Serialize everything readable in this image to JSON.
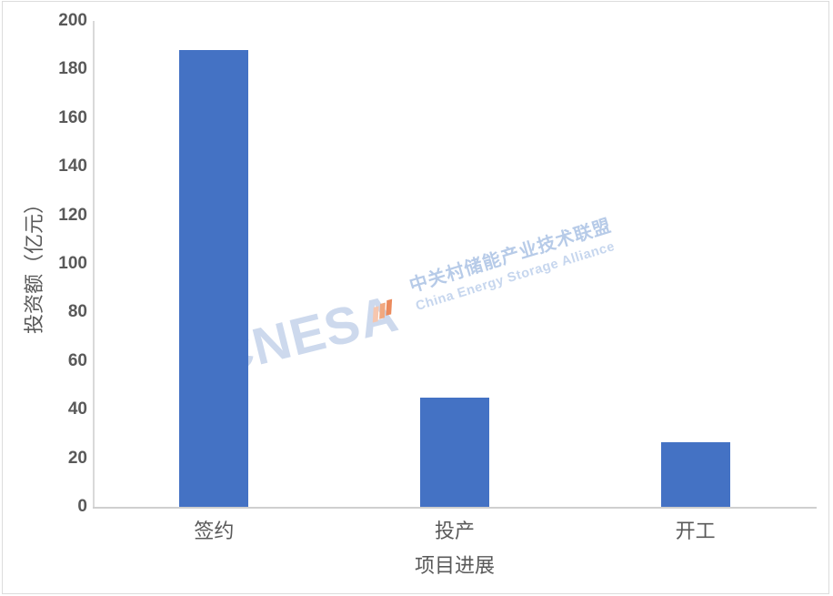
{
  "chart_data": {
    "type": "bar",
    "title": "",
    "categories": [
      "签约",
      "投产",
      "开工"
    ],
    "values": [
      188,
      45,
      26.5
    ],
    "xlabel": "项目进展",
    "ylabel": "投资额（亿元）",
    "ylim": [
      0,
      200
    ],
    "ytick_step": 20,
    "yticks": [
      0,
      20,
      40,
      60,
      80,
      100,
      120,
      140,
      160,
      180,
      200
    ],
    "grid": false,
    "legend": false,
    "bar_color": "#4472C4",
    "axis_color": "#D9D9D9",
    "label_color": "#595959"
  },
  "watermark": {
    "acronym": "CNESA",
    "name_cn": "中关村储能产业技术联盟",
    "name_en": "China Energy Storage Alliance",
    "color_acronym": "#CDD9ED",
    "color_cn": "#B7CBE8",
    "color_en": "#C6D6EE",
    "arrow_icon": "rising-stripes-icon",
    "arrow_colors": [
      "#F6C6AE",
      "#F1A87F",
      "#EB8A5C"
    ]
  }
}
